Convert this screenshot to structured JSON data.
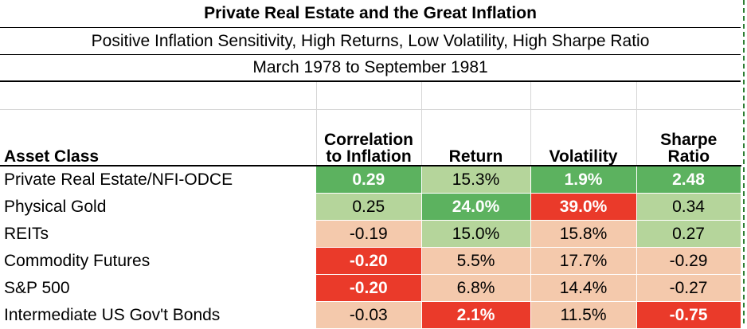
{
  "title": "Private Real Estate and the Great Inflation",
  "subtitle": "Positive Inflation Sensitivity, High Returns, Low Volatility, High Sharpe Ratio",
  "date_range": "March 1978 to September 1981",
  "headers": {
    "asset_class": "Asset Class",
    "correlation_line1": "Correlation",
    "correlation_line2": "to Inflation",
    "return": "Return",
    "volatility": "Volatility",
    "sharpe_line1": "Sharpe",
    "sharpe_line2": "Ratio"
  },
  "colors": {
    "dark_green": "#5cb25f",
    "light_green": "#b5d59b",
    "peach": "#f4c9ac",
    "red": "#ea3a2a",
    "marquee": "#2e7d32"
  },
  "rows": [
    {
      "asset": "Private Real Estate/NFI-ODCE",
      "correlation": "0.29",
      "return": "15.3%",
      "volatility": "1.9%",
      "sharpe": "2.48"
    },
    {
      "asset": "Physical Gold",
      "correlation": "0.25",
      "return": "24.0%",
      "volatility": "39.0%",
      "sharpe": "0.34"
    },
    {
      "asset": "REITs",
      "correlation": "-0.19",
      "return": "15.0%",
      "volatility": "15.8%",
      "sharpe": "0.27"
    },
    {
      "asset": "Commodity Futures",
      "correlation": "-0.20",
      "return": "5.5%",
      "volatility": "17.7%",
      "sharpe": "-0.29"
    },
    {
      "asset": "S&P 500",
      "correlation": "-0.20",
      "return": "6.8%",
      "volatility": "14.4%",
      "sharpe": "-0.27"
    },
    {
      "asset": "Intermediate US Gov't Bonds",
      "correlation": "-0.03",
      "return": "2.1%",
      "volatility": "11.5%",
      "sharpe": "-0.75"
    }
  ]
}
